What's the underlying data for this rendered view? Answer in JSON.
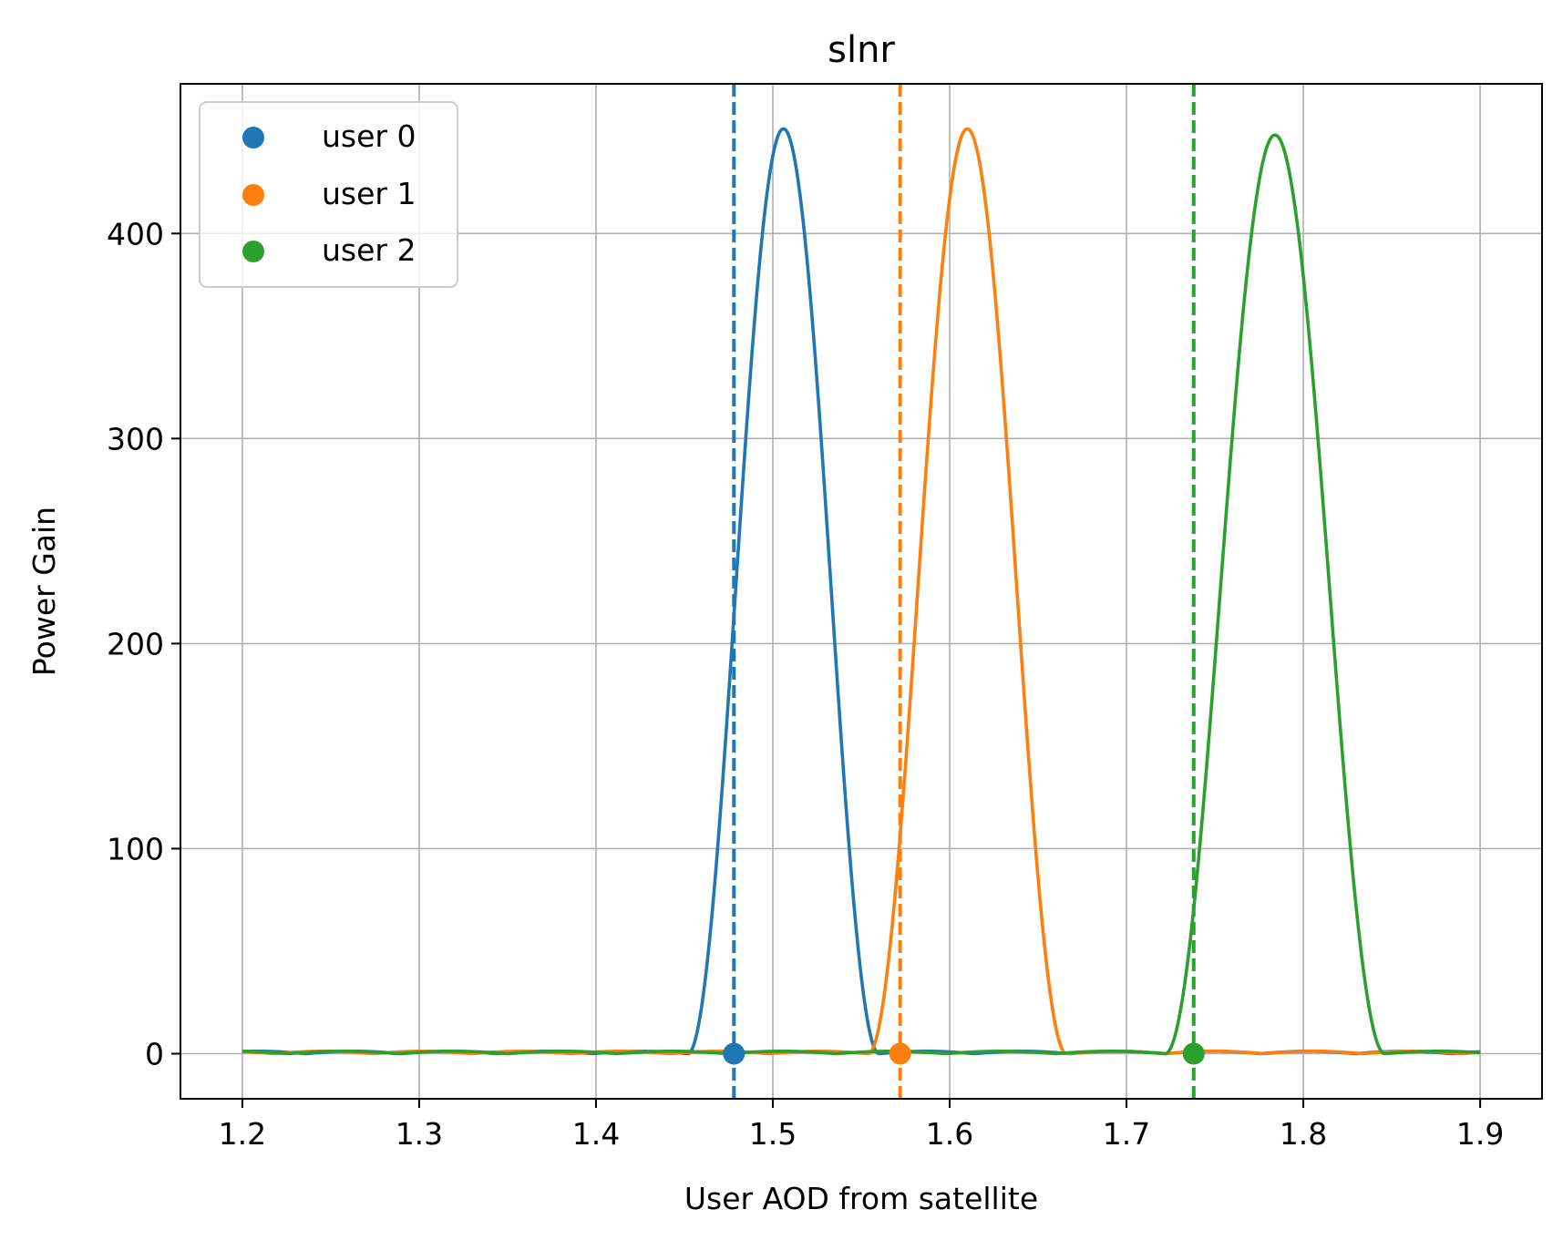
{
  "chart_data": {
    "type": "line",
    "title": "slnr",
    "xlabel": "User AOD from satellite",
    "ylabel": "Power Gain",
    "xlim": [
      1.165,
      1.935
    ],
    "ylim": [
      -22,
      473
    ],
    "xticks": [
      1.2,
      1.3,
      1.4,
      1.5,
      1.6,
      1.7,
      1.8,
      1.9
    ],
    "xtick_labels": [
      "1.2",
      "1.3",
      "1.4",
      "1.5",
      "1.6",
      "1.7",
      "1.8",
      "1.9"
    ],
    "yticks": [
      0,
      100,
      200,
      300,
      400
    ],
    "ytick_labels": [
      "0",
      "100",
      "200",
      "300",
      "400"
    ],
    "grid": true,
    "legend_position": "top-left",
    "x_range": [
      1.2,
      1.9
    ],
    "series": [
      {
        "name": "user 0",
        "color": "#1f77b4",
        "user_aod": 1.478,
        "marker": [
          1.478,
          0
        ],
        "peak_x": 1.506,
        "peak_y": 451,
        "main_lobe_first_nulls": [
          1.452,
          1.56
        ]
      },
      {
        "name": "user 1",
        "color": "#ff7f0e",
        "user_aod": 1.572,
        "marker": [
          1.572,
          0
        ],
        "peak_x": 1.61,
        "peak_y": 451,
        "main_lobe_first_nulls": [
          1.554,
          1.666
        ]
      },
      {
        "name": "user 2",
        "color": "#2ca02c",
        "user_aod": 1.738,
        "marker": [
          1.738,
          0
        ],
        "peak_x": 1.784,
        "peak_y": 448,
        "main_lobe_first_nulls": [
          1.722,
          1.846
        ]
      }
    ]
  }
}
